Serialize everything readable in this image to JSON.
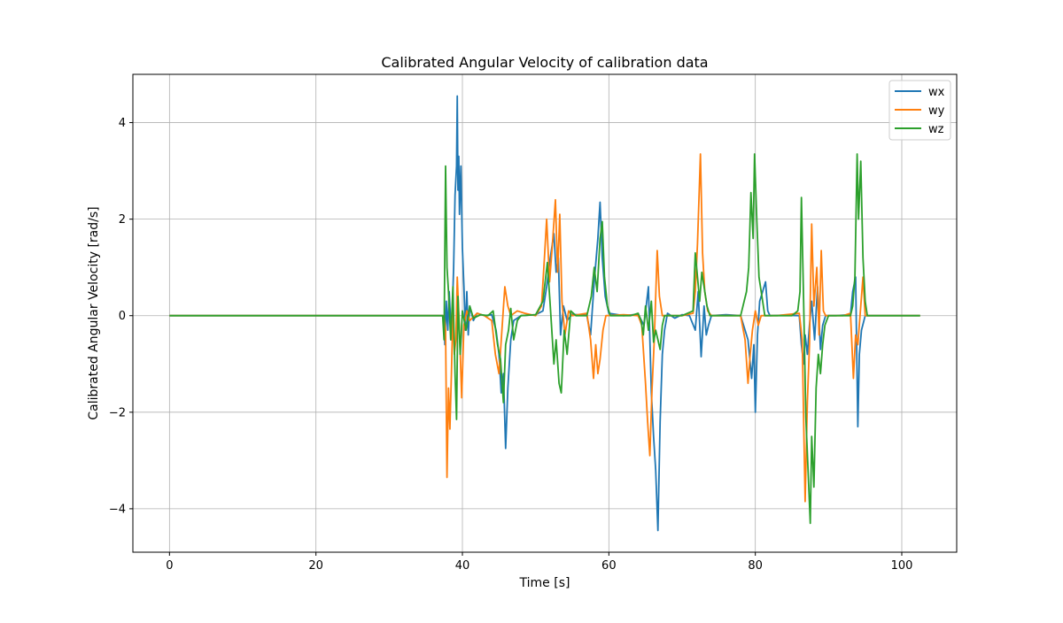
{
  "chart_data": {
    "type": "line",
    "title": "Calibrated Angular Velocity of calibration data",
    "xlabel": "Time [s]",
    "ylabel": "Calibrated Angular Velocity [rad/s]",
    "xlim": [
      -5,
      107.5
    ],
    "ylim": [
      -4.9,
      5.0
    ],
    "xticks": [
      0,
      20,
      40,
      60,
      80,
      100
    ],
    "yticks": [
      -4,
      -2,
      0,
      2,
      4
    ],
    "xtick_labels": [
      "0",
      "20",
      "40",
      "60",
      "80",
      "100"
    ],
    "ytick_labels": [
      "−4",
      "−2",
      "0",
      "2",
      "4"
    ],
    "grid": true,
    "legend_position": "top-right",
    "series": [
      {
        "name": "wx",
        "color": "#1f77b4",
        "points": [
          [
            0,
            0
          ],
          [
            37.5,
            0
          ],
          [
            37.6,
            -0.6
          ],
          [
            37.8,
            0.3
          ],
          [
            38.0,
            -0.3
          ],
          [
            38.2,
            0.5
          ],
          [
            38.5,
            -0.5
          ],
          [
            38.8,
            1.0
          ],
          [
            39.0,
            2.5
          ],
          [
            39.2,
            3.1
          ],
          [
            39.3,
            4.55
          ],
          [
            39.4,
            2.6
          ],
          [
            39.5,
            3.3
          ],
          [
            39.6,
            2.1
          ],
          [
            39.8,
            3.1
          ],
          [
            39.9,
            2.2
          ],
          [
            40.0,
            1.4
          ],
          [
            40.2,
            0.6
          ],
          [
            40.4,
            -0.3
          ],
          [
            40.6,
            0.5
          ],
          [
            40.8,
            -0.4
          ],
          [
            41.0,
            0.2
          ],
          [
            41.5,
            -0.1
          ],
          [
            42.0,
            0.05
          ],
          [
            43.0,
            0.0
          ],
          [
            44.0,
            0.02
          ],
          [
            44.6,
            -0.3
          ],
          [
            45.0,
            -0.8
          ],
          [
            45.3,
            -1.6
          ],
          [
            45.6,
            -1.2
          ],
          [
            45.9,
            -2.75
          ],
          [
            46.2,
            -1.5
          ],
          [
            46.6,
            -0.5
          ],
          [
            47.0,
            -0.1
          ],
          [
            48.0,
            0.0
          ],
          [
            50.0,
            0.02
          ],
          [
            51.0,
            0.1
          ],
          [
            51.5,
            0.6
          ],
          [
            52.0,
            1.2
          ],
          [
            52.5,
            1.7
          ],
          [
            52.8,
            0.9
          ],
          [
            53.1,
            1.2
          ],
          [
            53.4,
            -0.4
          ],
          [
            53.8,
            0.2
          ],
          [
            54.3,
            -0.1
          ],
          [
            55.0,
            0.03
          ],
          [
            57.0,
            0.0
          ],
          [
            57.5,
            -0.4
          ],
          [
            58.0,
            0.7
          ],
          [
            58.5,
            1.6
          ],
          [
            58.8,
            2.35
          ],
          [
            59.1,
            1.2
          ],
          [
            59.5,
            0.4
          ],
          [
            60.0,
            0.05
          ],
          [
            62.0,
            0.0
          ],
          [
            64.0,
            0.03
          ],
          [
            64.8,
            -0.2
          ],
          [
            65.4,
            0.6
          ],
          [
            65.8,
            -1.6
          ],
          [
            66.1,
            -2.5
          ],
          [
            66.4,
            -3.2
          ],
          [
            66.7,
            -4.45
          ],
          [
            67.0,
            -2.2
          ],
          [
            67.3,
            -0.8
          ],
          [
            67.6,
            -0.3
          ],
          [
            68.0,
            0.05
          ],
          [
            69.0,
            -0.05
          ],
          [
            70.0,
            0.02
          ],
          [
            71.0,
            0.0
          ],
          [
            71.8,
            -0.3
          ],
          [
            72.2,
            0.5
          ],
          [
            72.6,
            -0.85
          ],
          [
            73.0,
            0.2
          ],
          [
            73.3,
            -0.4
          ],
          [
            73.6,
            -0.2
          ],
          [
            74.0,
            0.0
          ],
          [
            76.0,
            0.02
          ],
          [
            78.0,
            0.0
          ],
          [
            79.0,
            -0.5
          ],
          [
            79.5,
            -1.3
          ],
          [
            79.8,
            -0.6
          ],
          [
            80.0,
            -2.0
          ],
          [
            80.3,
            -0.4
          ],
          [
            80.6,
            0.3
          ],
          [
            81.0,
            0.5
          ],
          [
            81.4,
            0.7
          ],
          [
            81.7,
            0.1
          ],
          [
            82.0,
            0.0
          ],
          [
            84.0,
            0.01
          ],
          [
            86.0,
            0.0
          ],
          [
            86.3,
            -0.6
          ],
          [
            86.6,
            -1.0
          ],
          [
            86.8,
            -0.4
          ],
          [
            87.1,
            -0.8
          ],
          [
            87.4,
            -0.2
          ],
          [
            87.7,
            0.3
          ],
          [
            88.1,
            -0.5
          ],
          [
            88.5,
            0.6
          ],
          [
            88.9,
            -0.7
          ],
          [
            89.2,
            -0.2
          ],
          [
            89.6,
            0.0
          ],
          [
            91.0,
            0.0
          ],
          [
            93.0,
            0.02
          ],
          [
            93.3,
            0.5
          ],
          [
            93.7,
            0.8
          ],
          [
            94.0,
            -2.3
          ],
          [
            94.2,
            -0.8
          ],
          [
            94.5,
            -0.3
          ],
          [
            95.0,
            0.0
          ],
          [
            102.5,
            0
          ]
        ]
      },
      {
        "name": "wy",
        "color": "#ff7f0e",
        "points": [
          [
            0,
            0
          ],
          [
            37.5,
            0
          ],
          [
            37.7,
            -0.3
          ],
          [
            37.9,
            -3.35
          ],
          [
            38.1,
            -1.5
          ],
          [
            38.3,
            -2.35
          ],
          [
            38.5,
            -1.2
          ],
          [
            38.7,
            0.1
          ],
          [
            38.9,
            -0.8
          ],
          [
            39.1,
            -0.5
          ],
          [
            39.3,
            0.8
          ],
          [
            39.6,
            -0.3
          ],
          [
            39.9,
            -1.7
          ],
          [
            40.2,
            -0.2
          ],
          [
            40.6,
            0.1
          ],
          [
            41.0,
            -0.1
          ],
          [
            42.0,
            0.05
          ],
          [
            43.0,
            0.0
          ],
          [
            44.0,
            -0.1
          ],
          [
            44.5,
            -0.8
          ],
          [
            45.0,
            -1.2
          ],
          [
            45.4,
            -0.3
          ],
          [
            45.8,
            0.6
          ],
          [
            46.2,
            0.2
          ],
          [
            46.6,
            0.0
          ],
          [
            47.5,
            0.1
          ],
          [
            48.5,
            0.05
          ],
          [
            50.0,
            0.0
          ],
          [
            50.8,
            0.2
          ],
          [
            51.2,
            1.2
          ],
          [
            51.5,
            2.0
          ],
          [
            51.9,
            0.7
          ],
          [
            52.3,
            1.5
          ],
          [
            52.7,
            2.4
          ],
          [
            53.0,
            0.9
          ],
          [
            53.3,
            2.1
          ],
          [
            53.6,
            0.3
          ],
          [
            54.0,
            -0.4
          ],
          [
            54.5,
            0.1
          ],
          [
            55.0,
            0.0
          ],
          [
            57.0,
            0.05
          ],
          [
            57.5,
            -0.5
          ],
          [
            57.9,
            -1.3
          ],
          [
            58.2,
            -0.6
          ],
          [
            58.5,
            -1.2
          ],
          [
            58.8,
            -0.9
          ],
          [
            59.2,
            -0.3
          ],
          [
            59.6,
            0.0
          ],
          [
            62.0,
            0.02
          ],
          [
            64.0,
            0.0
          ],
          [
            64.5,
            -0.2
          ],
          [
            65.0,
            -1.4
          ],
          [
            65.3,
            -2.2
          ],
          [
            65.6,
            -2.9
          ],
          [
            65.9,
            -1.5
          ],
          [
            66.2,
            -0.5
          ],
          [
            66.6,
            1.35
          ],
          [
            66.9,
            0.4
          ],
          [
            67.3,
            0.0
          ],
          [
            70.0,
            0.0
          ],
          [
            71.5,
            0.05
          ],
          [
            71.8,
            0.5
          ],
          [
            72.1,
            1.5
          ],
          [
            72.5,
            3.35
          ],
          [
            72.8,
            1.3
          ],
          [
            73.1,
            0.5
          ],
          [
            73.5,
            0.1
          ],
          [
            74.0,
            0.0
          ],
          [
            78.0,
            0.0
          ],
          [
            78.6,
            -0.5
          ],
          [
            79.0,
            -1.4
          ],
          [
            79.3,
            -0.8
          ],
          [
            79.6,
            -0.3
          ],
          [
            80.0,
            0.1
          ],
          [
            80.4,
            -0.2
          ],
          [
            80.8,
            0.0
          ],
          [
            83.0,
            0.0
          ],
          [
            86.0,
            0.05
          ],
          [
            86.4,
            -0.5
          ],
          [
            86.8,
            -3.85
          ],
          [
            87.1,
            -1.8
          ],
          [
            87.4,
            -0.6
          ],
          [
            87.7,
            1.9
          ],
          [
            88.0,
            0.2
          ],
          [
            88.4,
            1.0
          ],
          [
            88.7,
            -0.4
          ],
          [
            89.0,
            1.35
          ],
          [
            89.3,
            0.1
          ],
          [
            89.6,
            0.0
          ],
          [
            92.0,
            0.0
          ],
          [
            93.0,
            0.05
          ],
          [
            93.4,
            -1.3
          ],
          [
            93.7,
            -0.4
          ],
          [
            94.0,
            -0.6
          ],
          [
            94.4,
            0.2
          ],
          [
            94.7,
            0.8
          ],
          [
            95.0,
            0.0
          ],
          [
            102.5,
            0
          ]
        ]
      },
      {
        "name": "wz",
        "color": "#2ca02c",
        "points": [
          [
            0,
            0
          ],
          [
            37.3,
            0
          ],
          [
            37.5,
            -0.5
          ],
          [
            37.7,
            3.1
          ],
          [
            37.9,
            1.0
          ],
          [
            38.1,
            0.5
          ],
          [
            38.4,
            -0.5
          ],
          [
            38.7,
            0.6
          ],
          [
            39.0,
            -1.2
          ],
          [
            39.2,
            -2.15
          ],
          [
            39.4,
            0.4
          ],
          [
            39.7,
            -0.8
          ],
          [
            40.0,
            0.1
          ],
          [
            40.5,
            -0.3
          ],
          [
            41.0,
            0.2
          ],
          [
            41.5,
            -0.05
          ],
          [
            42.5,
            0.02
          ],
          [
            43.5,
            0.0
          ],
          [
            44.2,
            0.1
          ],
          [
            44.8,
            -0.6
          ],
          [
            45.2,
            -0.9
          ],
          [
            45.6,
            -1.8
          ],
          [
            45.9,
            -0.6
          ],
          [
            46.3,
            -0.3
          ],
          [
            46.6,
            0.15
          ],
          [
            47.0,
            -0.5
          ],
          [
            47.5,
            -0.1
          ],
          [
            48.0,
            0.0
          ],
          [
            50.0,
            0.02
          ],
          [
            51.0,
            0.3
          ],
          [
            51.6,
            1.1
          ],
          [
            52.0,
            0.2
          ],
          [
            52.5,
            -1.0
          ],
          [
            52.8,
            -0.5
          ],
          [
            53.2,
            -1.4
          ],
          [
            53.5,
            -1.6
          ],
          [
            53.9,
            -0.3
          ],
          [
            54.3,
            -0.8
          ],
          [
            54.8,
            0.1
          ],
          [
            55.5,
            0.0
          ],
          [
            57.0,
            0.0
          ],
          [
            57.6,
            0.4
          ],
          [
            58.0,
            1.0
          ],
          [
            58.4,
            0.5
          ],
          [
            58.8,
            1.6
          ],
          [
            59.1,
            1.95
          ],
          [
            59.4,
            0.8
          ],
          [
            59.8,
            0.2
          ],
          [
            60.2,
            0.0
          ],
          [
            63.0,
            0.0
          ],
          [
            64.0,
            0.05
          ],
          [
            64.4,
            -0.1
          ],
          [
            64.7,
            -0.4
          ],
          [
            65.0,
            0.2
          ],
          [
            65.4,
            -0.3
          ],
          [
            65.8,
            0.3
          ],
          [
            66.1,
            -0.55
          ],
          [
            66.4,
            -0.3
          ],
          [
            66.7,
            -0.5
          ],
          [
            67.0,
            -0.7
          ],
          [
            67.3,
            -0.2
          ],
          [
            67.6,
            0.0
          ],
          [
            70.0,
            0.0
          ],
          [
            71.5,
            0.1
          ],
          [
            71.8,
            1.3
          ],
          [
            72.1,
            0.8
          ],
          [
            72.4,
            0.3
          ],
          [
            72.7,
            0.9
          ],
          [
            73.0,
            0.6
          ],
          [
            73.4,
            0.2
          ],
          [
            73.8,
            0.0
          ],
          [
            78.0,
            0.0
          ],
          [
            78.8,
            0.5
          ],
          [
            79.1,
            1.0
          ],
          [
            79.4,
            2.55
          ],
          [
            79.7,
            1.6
          ],
          [
            79.9,
            3.35
          ],
          [
            80.2,
            2.0
          ],
          [
            80.5,
            0.8
          ],
          [
            80.9,
            0.4
          ],
          [
            81.3,
            0.0
          ],
          [
            85.0,
            0.0
          ],
          [
            85.8,
            0.1
          ],
          [
            86.1,
            0.5
          ],
          [
            86.3,
            2.45
          ],
          [
            86.6,
            0.3
          ],
          [
            86.9,
            -2.1
          ],
          [
            87.2,
            -3.2
          ],
          [
            87.5,
            -4.3
          ],
          [
            87.7,
            -2.5
          ],
          [
            88.0,
            -3.55
          ],
          [
            88.3,
            -1.5
          ],
          [
            88.6,
            -0.8
          ],
          [
            88.9,
            -1.2
          ],
          [
            89.2,
            -0.6
          ],
          [
            89.5,
            -0.2
          ],
          [
            90.0,
            0.0
          ],
          [
            93.0,
            0.0
          ],
          [
            93.3,
            0.2
          ],
          [
            93.6,
            0.8
          ],
          [
            93.9,
            3.35
          ],
          [
            94.1,
            2.0
          ],
          [
            94.4,
            3.2
          ],
          [
            94.7,
            1.2
          ],
          [
            95.0,
            0.3
          ],
          [
            95.3,
            0.0
          ],
          [
            102.5,
            0
          ]
        ]
      }
    ]
  }
}
